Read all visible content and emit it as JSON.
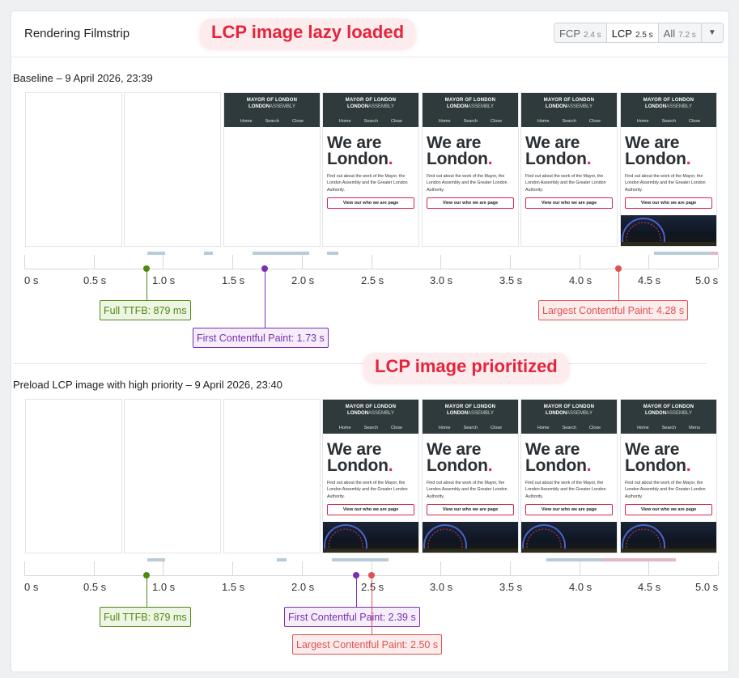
{
  "panel_title": "Rendering Filmstrip",
  "segment_selector": {
    "buttons": [
      {
        "label": "FCP",
        "value": "2.4 s"
      },
      {
        "label": "LCP",
        "value": "2.5 s"
      },
      {
        "label": "All",
        "value": "7.2 s"
      }
    ],
    "active": "LCP"
  },
  "annotations": {
    "top": "LCP image lazy loaded",
    "bottom": "LCP image prioritized"
  },
  "axis_ticks": [
    "0 s",
    "0.5 s",
    "1.0 s",
    "1.5 s",
    "2.0 s",
    "2.5 s",
    "3.0 s",
    "3.5 s",
    "4.0 s",
    "4.5 s",
    "5.0 s"
  ],
  "screenshot": {
    "brand_line1": "MAYOR OF LONDON",
    "brand_line2_bold": "LONDON",
    "brand_line2_light": "ASSEMBLY",
    "nav": [
      "Home",
      "Search",
      "Close"
    ],
    "nav_alt": [
      "Home",
      "Search",
      "Menu"
    ],
    "hero": "We are London",
    "hero_dot": ".",
    "text": "Find out about the work of the Mayor, the London Assembly and the Greater London Authority.",
    "button": "View our who we are page"
  },
  "colors": {
    "ttfb": "#4f8a10",
    "fcp": "#7a2fb0",
    "lcp": "#e05252",
    "activity_blue": "#b7cbd8",
    "activity_pink": "#e3b7c5"
  },
  "runs": [
    {
      "title": "Baseline – 9 April 2026, 23:39",
      "frames": [
        "blank",
        "blank",
        "header",
        "page",
        "page",
        "page",
        "page_image"
      ],
      "markers": [
        {
          "key": "ttfb",
          "label": "Full TTFB: 879 ms",
          "time_s": 0.879
        },
        {
          "key": "fcp",
          "label": "First Contentful Paint: 1.73 s",
          "time_s": 1.73
        },
        {
          "key": "lcp",
          "label": "Largest Contentful Paint: 4.28 s",
          "time_s": 4.28
        }
      ]
    },
    {
      "title": "Preload LCP image with high priority – 9 April 2026, 23:40",
      "frames": [
        "blank",
        "blank",
        "blank",
        "page_image",
        "page_image",
        "page_image",
        "page_image_menu"
      ],
      "markers": [
        {
          "key": "ttfb",
          "label": "Full TTFB: 879 ms",
          "time_s": 0.879
        },
        {
          "key": "fcp",
          "label": "First Contentful Paint: 2.39 s",
          "time_s": 2.39
        },
        {
          "key": "lcp",
          "label": "Largest Contentful Paint: 2.50 s",
          "time_s": 2.5
        }
      ]
    }
  ]
}
